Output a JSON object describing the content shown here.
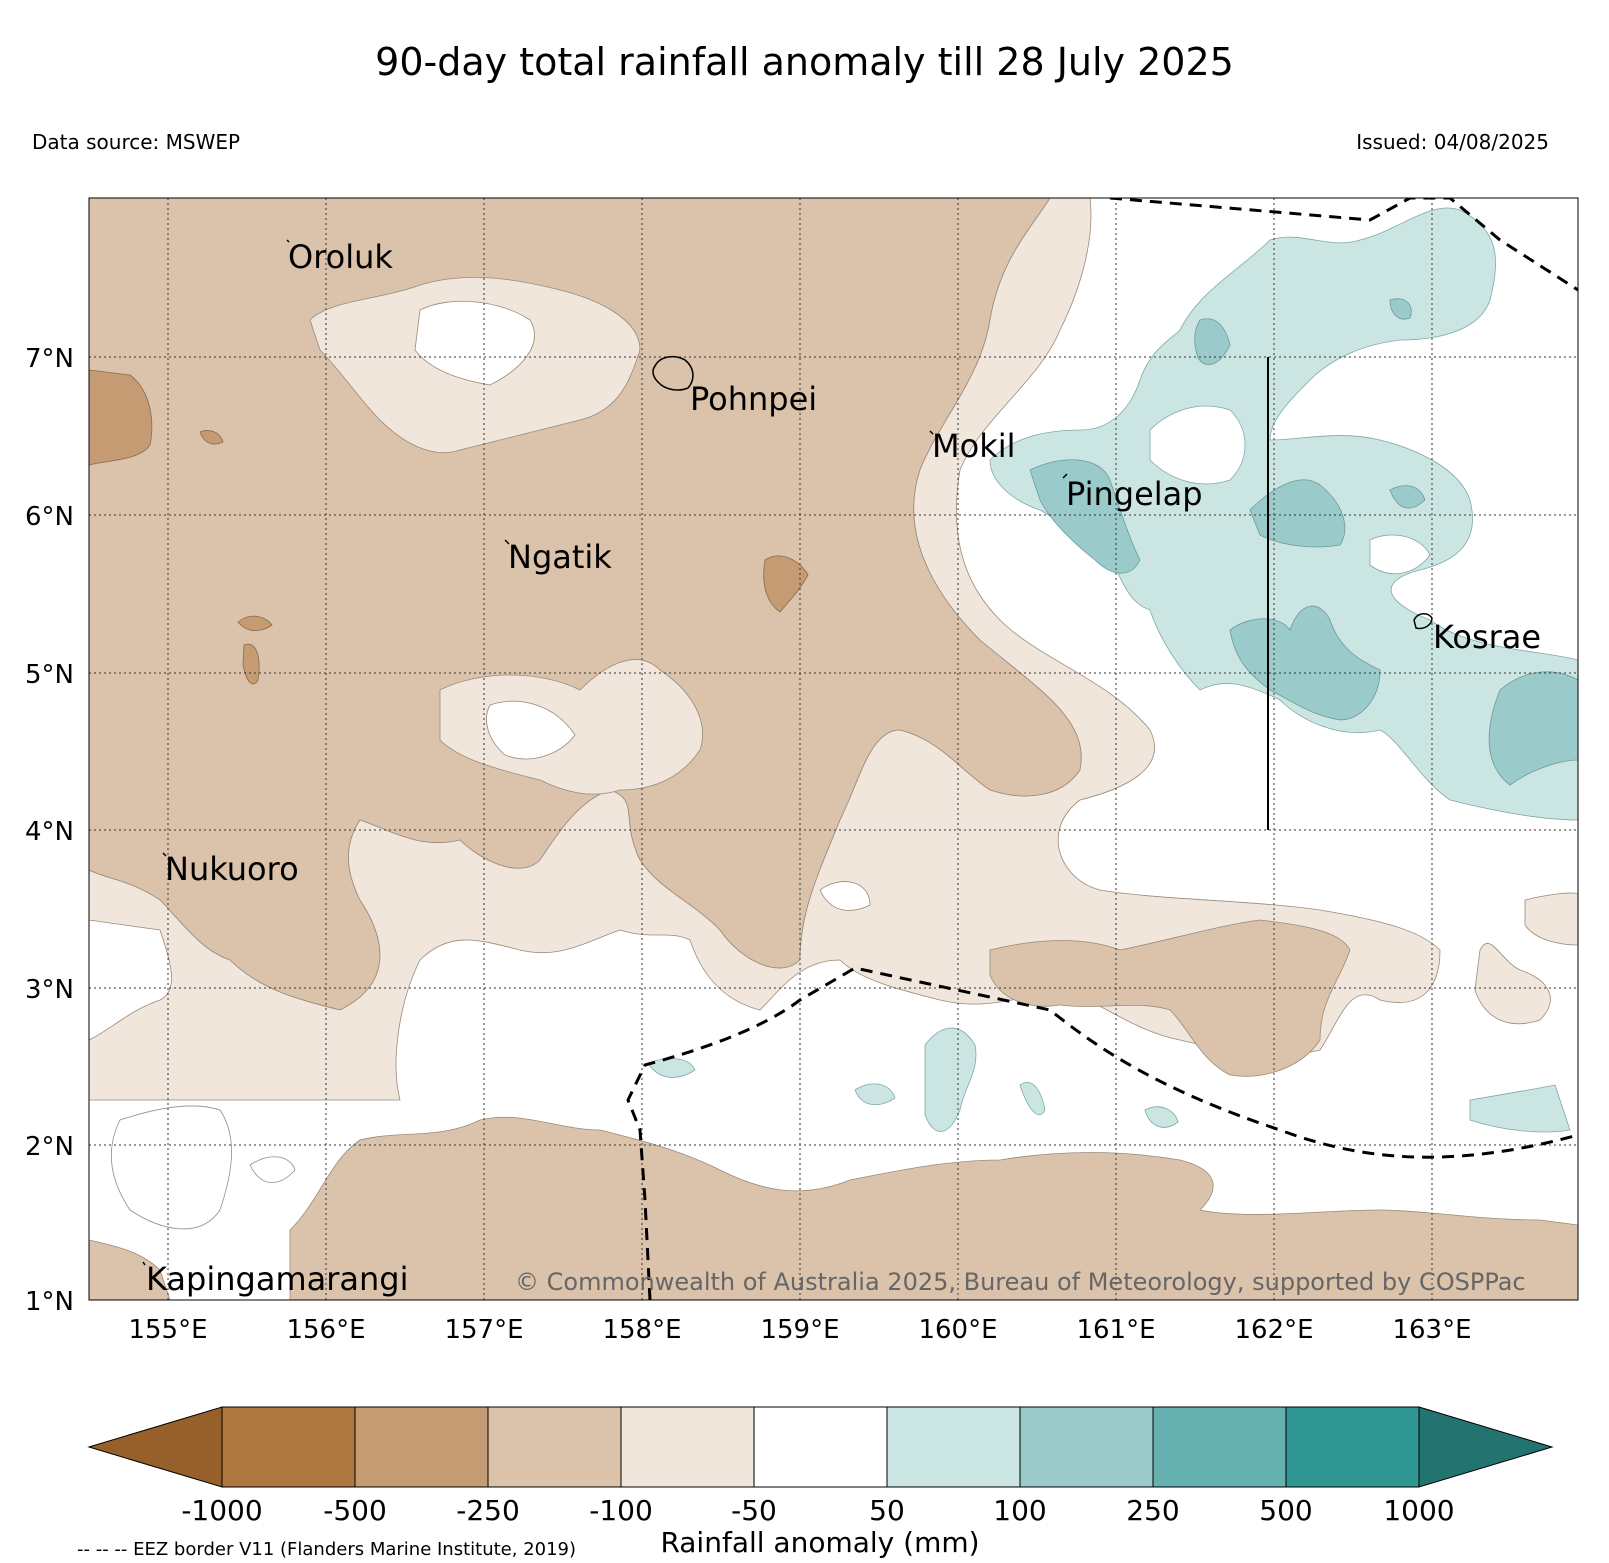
{
  "header": {
    "title": "90-day total rainfall anomaly till 28 July 2025",
    "data_source": "Data source: MSWEP",
    "issued": "Issued: 04/08/2025"
  },
  "map": {
    "extent": {
      "lon_min": 154.5,
      "lon_max": 164.0,
      "lat_min": 1.0,
      "lat_max": 8.0
    },
    "lon_ticks": [
      {
        "value": 155,
        "label": "155°E"
      },
      {
        "value": 156,
        "label": "156°E"
      },
      {
        "value": 157,
        "label": "157°E"
      },
      {
        "value": 158,
        "label": "158°E"
      },
      {
        "value": 159,
        "label": "159°E"
      },
      {
        "value": 160,
        "label": "160°E"
      },
      {
        "value": 161,
        "label": "161°E"
      },
      {
        "value": 162,
        "label": "162°E"
      },
      {
        "value": 163,
        "label": "163°E"
      }
    ],
    "lat_ticks": [
      {
        "value": 1,
        "label": "1°N"
      },
      {
        "value": 2,
        "label": "2°N"
      },
      {
        "value": 3,
        "label": "3°N"
      },
      {
        "value": 4,
        "label": "4°N"
      },
      {
        "value": 5,
        "label": "5°N"
      },
      {
        "value": 6,
        "label": "6°N"
      },
      {
        "value": 7,
        "label": "7°N"
      }
    ],
    "places": [
      {
        "name": "Oroluk",
        "lon": 155.75,
        "lat": 7.65
      },
      {
        "name": "Pohnpei",
        "lon": 158.2,
        "lat": 6.9
      },
      {
        "name": "Mokil",
        "lon": 159.8,
        "lat": 6.55
      },
      {
        "name": "Pingelap",
        "lon": 160.7,
        "lat": 6.2
      },
      {
        "name": "Ngatik",
        "lon": 157.15,
        "lat": 5.8
      },
      {
        "name": "Kosrae",
        "lon": 163.0,
        "lat": 5.3
      },
      {
        "name": "Nukuoro",
        "lon": 154.8,
        "lat": 3.85
      },
      {
        "name": "Kapingamarangi",
        "lon": 154.8,
        "lat": 1.1
      }
    ],
    "copyright": "© Commonwealth of Australia 2025, Bureau of Meteorology, supported by COSPPac"
  },
  "colorbar": {
    "label": "Rainfall anomaly (mm)",
    "ticks": [
      "-1000",
      "-500",
      "-250",
      "-100",
      "-50",
      "50",
      "100",
      "250",
      "500",
      "1000"
    ],
    "colors": [
      "#97602a",
      "#ad773f",
      "#c49b72",
      "#dac3aa",
      "#f0e6dc",
      "#ffffff",
      "#cbe5e3",
      "#9acbca",
      "#65b1b0",
      "#2f9692",
      "#237471"
    ]
  },
  "footer": {
    "eez_note": "-- -- -- EEZ border V11 (Flanders Marine Institute, 2019)"
  }
}
